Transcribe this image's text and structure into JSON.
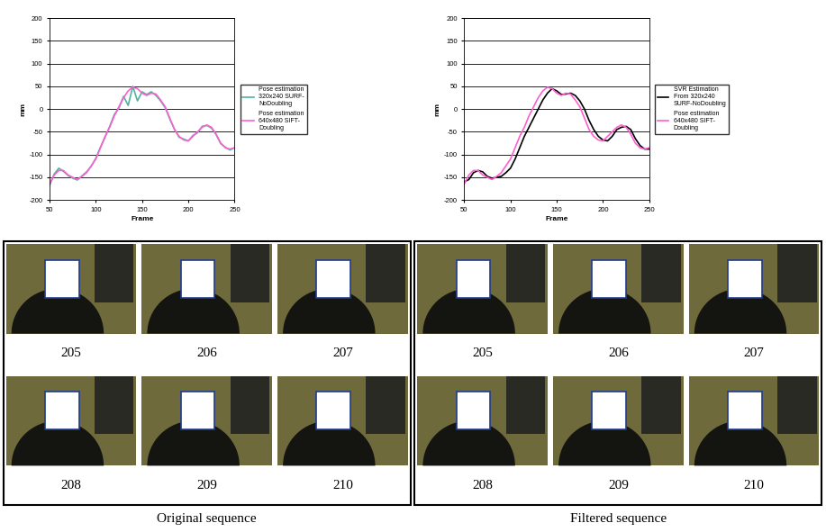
{
  "chart_data": [
    {
      "type": "line",
      "x_label": "Frame",
      "y_label": "mm",
      "x": [
        50,
        55,
        60,
        65,
        70,
        75,
        80,
        85,
        90,
        95,
        100,
        105,
        110,
        115,
        120,
        125,
        130,
        135,
        140,
        145,
        150,
        155,
        160,
        165,
        170,
        175,
        180,
        185,
        190,
        195,
        200,
        205,
        210,
        215,
        220,
        225,
        230,
        235,
        240,
        245,
        250
      ],
      "xlim": [
        50,
        250
      ],
      "xticks": [
        50,
        100,
        150,
        200,
        250
      ],
      "ylim": [
        -200,
        200
      ],
      "yticks": [
        -200,
        -150,
        -100,
        -50,
        0,
        50,
        100,
        150,
        200
      ],
      "grid": true,
      "legend": "right",
      "series": [
        {
          "name": "Pose estimation 320x240 SURF-NoDoubling",
          "color": "#4fb3a0",
          "values": [
            -168,
            -143,
            -130,
            -137,
            -146,
            -152,
            -156,
            -147,
            -138,
            -126,
            -108,
            -84,
            -62,
            -38,
            -12,
            2,
            28,
            8,
            50,
            18,
            38,
            32,
            38,
            30,
            18,
            3,
            -22,
            -44,
            -62,
            -66,
            -70,
            -58,
            -52,
            -38,
            -36,
            -42,
            -56,
            -76,
            -84,
            -90,
            -85
          ]
        },
        {
          "name": "Pose estimation 640x480 SIFT-Doubling",
          "color": "#ff5fd0",
          "values": [
            -165,
            -145,
            -135,
            -135,
            -145,
            -150,
            -155,
            -148,
            -140,
            -125,
            -110,
            -85,
            -60,
            -40,
            -15,
            5,
            25,
            40,
            48,
            45,
            35,
            30,
            35,
            33,
            20,
            5,
            -20,
            -45,
            -60,
            -68,
            -70,
            -60,
            -50,
            -40,
            -35,
            -40,
            -55,
            -75,
            -85,
            -88,
            -85
          ]
        }
      ]
    },
    {
      "type": "line",
      "x_label": "Frame",
      "y_label": "mm",
      "x": [
        50,
        55,
        60,
        65,
        70,
        75,
        80,
        85,
        90,
        95,
        100,
        105,
        110,
        115,
        120,
        125,
        130,
        135,
        140,
        145,
        150,
        155,
        160,
        165,
        170,
        175,
        180,
        185,
        190,
        195,
        200,
        205,
        210,
        215,
        220,
        225,
        230,
        235,
        240,
        245,
        250
      ],
      "xlim": [
        50,
        250
      ],
      "xticks": [
        50,
        100,
        150,
        200,
        250
      ],
      "ylim": [
        -200,
        200
      ],
      "yticks": [
        -200,
        -150,
        -100,
        -50,
        0,
        50,
        100,
        150,
        200
      ],
      "grid": true,
      "legend": "right",
      "series": [
        {
          "name": "SVR Estimation From 320x240 SURF-NoDoubling",
          "color": "#000000",
          "values": [
            -160,
            -155,
            -140,
            -135,
            -138,
            -148,
            -152,
            -150,
            -148,
            -140,
            -130,
            -110,
            -85,
            -60,
            -40,
            -20,
            0,
            20,
            35,
            45,
            40,
            32,
            33,
            35,
            30,
            18,
            0,
            -25,
            -45,
            -60,
            -68,
            -70,
            -60,
            -45,
            -40,
            -38,
            -45,
            -65,
            -80,
            -88,
            -88
          ]
        },
        {
          "name": "Pose estimation 640x480 SIFT-Doubling",
          "color": "#ff5fd0",
          "values": [
            -165,
            -145,
            -135,
            -135,
            -145,
            -150,
            -155,
            -148,
            -140,
            -125,
            -110,
            -85,
            -60,
            -40,
            -15,
            5,
            25,
            40,
            48,
            45,
            35,
            30,
            35,
            33,
            20,
            5,
            -20,
            -45,
            -60,
            -68,
            -70,
            -60,
            -50,
            -40,
            -35,
            -40,
            -55,
            -75,
            -85,
            -88,
            -85
          ]
        }
      ]
    }
  ],
  "panels": [
    {
      "caption": "Original sequence",
      "frames": [
        205,
        206,
        207,
        208,
        209,
        210
      ]
    },
    {
      "caption": "Filtered sequence",
      "frames": [
        205,
        206,
        207,
        208,
        209,
        210
      ]
    }
  ]
}
